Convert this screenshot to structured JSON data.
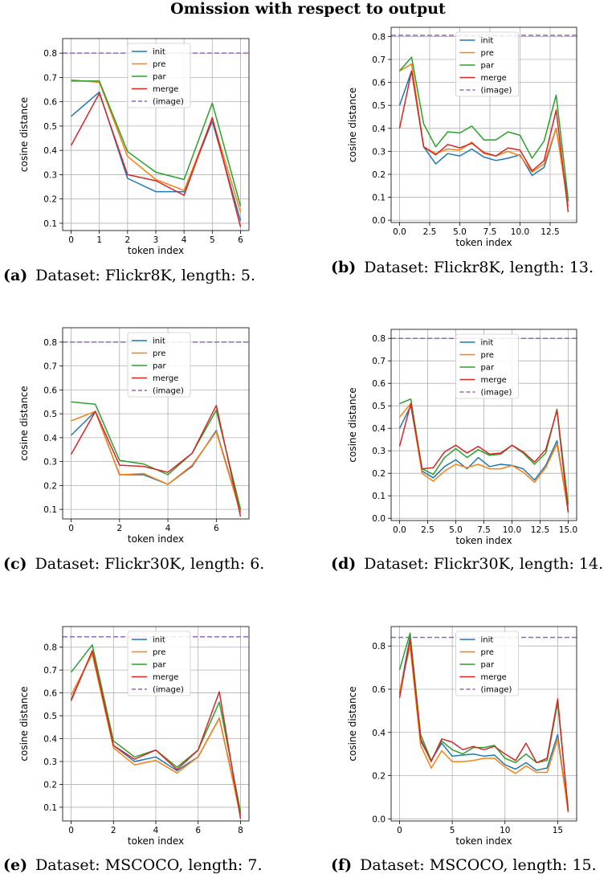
{
  "title": "Omission with respect to output",
  "colors": {
    "init": "#1f77b4",
    "pre": "#ff7f0e",
    "par": "#2ca02c",
    "merge": "#d62728",
    "(image)": "#9467bd"
  },
  "chart_data": [
    {
      "type": "line",
      "label": "(a)",
      "caption": "Dataset: Flickr8K, length: 5.",
      "xlabel": "token index",
      "ylabel": "cosine distance",
      "xlim": [
        -0.3,
        6.3
      ],
      "ylim": [
        0.07,
        0.86
      ],
      "xticks": [
        "0",
        "1",
        "2",
        "3",
        "4",
        "5",
        "6"
      ],
      "xtick_values": [
        0,
        1,
        2,
        3,
        4,
        5,
        6
      ],
      "yticks": [
        "0.1",
        "0.2",
        "0.3",
        "0.4",
        "0.5",
        "0.6",
        "0.7",
        "0.8"
      ],
      "ytick_values": [
        0.1,
        0.2,
        0.3,
        0.4,
        0.5,
        0.6,
        0.7,
        0.8
      ],
      "grid": true,
      "legend": "top-center",
      "x": [
        0,
        1,
        2,
        3,
        4,
        5,
        6
      ],
      "series": [
        {
          "name": "init",
          "values": [
            0.54,
            0.64,
            0.285,
            0.23,
            0.23,
            0.52,
            0.11
          ]
        },
        {
          "name": "pre",
          "values": [
            0.69,
            0.68,
            0.375,
            0.28,
            0.235,
            0.53,
            0.145
          ]
        },
        {
          "name": "par",
          "values": [
            0.685,
            0.685,
            0.395,
            0.31,
            0.28,
            0.595,
            0.17
          ]
        },
        {
          "name": "merge",
          "values": [
            0.42,
            0.635,
            0.3,
            0.275,
            0.215,
            0.535,
            0.085
          ]
        }
      ],
      "hline": {
        "name": "(image)",
        "value": 0.8
      }
    },
    {
      "type": "line",
      "label": "(b)",
      "caption": "Dataset: Flickr8K, length: 13.",
      "xlabel": "token index",
      "ylabel": "cosine distance",
      "xlim": [
        -0.7,
        14.7
      ],
      "ylim": [
        -0.01,
        0.84
      ],
      "xticks": [
        "0.0",
        "2.5",
        "5.0",
        "7.5",
        "10.0",
        "12.5"
      ],
      "xtick_values": [
        0,
        2.5,
        5,
        7.5,
        10,
        12.5
      ],
      "yticks": [
        "0.0",
        "0.1",
        "0.2",
        "0.3",
        "0.4",
        "0.5",
        "0.6",
        "0.7",
        "0.8"
      ],
      "ytick_values": [
        0,
        0.1,
        0.2,
        0.3,
        0.4,
        0.5,
        0.6,
        0.7,
        0.8
      ],
      "grid": true,
      "legend": "top-center",
      "x": [
        0,
        1,
        2,
        3,
        4,
        5,
        6,
        7,
        8,
        9,
        10,
        11,
        12,
        13,
        14
      ],
      "series": [
        {
          "name": "init",
          "values": [
            0.5,
            0.65,
            0.32,
            0.245,
            0.29,
            0.28,
            0.31,
            0.275,
            0.26,
            0.27,
            0.285,
            0.195,
            0.23,
            0.4,
            0.08
          ]
        },
        {
          "name": "pre",
          "values": [
            0.65,
            0.68,
            0.32,
            0.29,
            0.31,
            0.305,
            0.34,
            0.29,
            0.28,
            0.3,
            0.28,
            0.21,
            0.245,
            0.4,
            0.06
          ]
        },
        {
          "name": "par",
          "values": [
            0.65,
            0.71,
            0.42,
            0.32,
            0.385,
            0.38,
            0.41,
            0.35,
            0.35,
            0.385,
            0.37,
            0.27,
            0.345,
            0.545,
            0.09
          ]
        },
        {
          "name": "merge",
          "values": [
            0.4,
            0.65,
            0.32,
            0.285,
            0.33,
            0.315,
            0.335,
            0.295,
            0.28,
            0.315,
            0.305,
            0.215,
            0.26,
            0.48,
            0.035
          ]
        }
      ],
      "hline": {
        "name": "(image)",
        "value": 0.805
      }
    },
    {
      "type": "line",
      "label": "(c)",
      "caption": "Dataset: Flickr30K, length: 6.",
      "xlabel": "token index",
      "ylabel": "cosine distance",
      "xlim": [
        -0.35,
        7.35
      ],
      "ylim": [
        0.06,
        0.86
      ],
      "xticks": [
        "0",
        "2",
        "4",
        "6"
      ],
      "xtick_values": [
        0,
        2,
        4,
        6
      ],
      "yticks": [
        "0.1",
        "0.2",
        "0.3",
        "0.4",
        "0.5",
        "0.6",
        "0.7",
        "0.8"
      ],
      "ytick_values": [
        0.1,
        0.2,
        0.3,
        0.4,
        0.5,
        0.6,
        0.7,
        0.8
      ],
      "grid": true,
      "legend": "top-center",
      "x": [
        0,
        1,
        2,
        3,
        4,
        5,
        6,
        7
      ],
      "series": [
        {
          "name": "init",
          "values": [
            0.41,
            0.51,
            0.245,
            0.245,
            0.205,
            0.28,
            0.43,
            0.09
          ]
        },
        {
          "name": "pre",
          "values": [
            0.47,
            0.51,
            0.245,
            0.25,
            0.205,
            0.285,
            0.425,
            0.085
          ]
        },
        {
          "name": "par",
          "values": [
            0.55,
            0.54,
            0.305,
            0.29,
            0.245,
            0.335,
            0.515,
            0.1
          ]
        },
        {
          "name": "merge",
          "values": [
            0.33,
            0.51,
            0.285,
            0.28,
            0.255,
            0.335,
            0.535,
            0.07
          ]
        }
      ],
      "hline": {
        "name": "(image)",
        "value": 0.8
      }
    },
    {
      "type": "line",
      "label": "(d)",
      "caption": "Dataset: Flickr30K, length: 14.",
      "xlabel": "token index",
      "ylabel": "cosine distance",
      "xlim": [
        -0.75,
        15.75
      ],
      "ylim": [
        -0.01,
        0.84
      ],
      "xticks": [
        "0.0",
        "2.5",
        "5.0",
        "7.5",
        "10.0",
        "12.5",
        "15.0"
      ],
      "xtick_values": [
        0,
        2.5,
        5,
        7.5,
        10,
        12.5,
        15
      ],
      "yticks": [
        "0.0",
        "0.1",
        "0.2",
        "0.3",
        "0.4",
        "0.5",
        "0.6",
        "0.7",
        "0.8"
      ],
      "ytick_values": [
        0,
        0.1,
        0.2,
        0.3,
        0.4,
        0.5,
        0.6,
        0.7,
        0.8
      ],
      "grid": true,
      "legend": "top-center",
      "x": [
        0,
        1,
        2,
        3,
        4,
        5,
        6,
        7,
        8,
        9,
        10,
        11,
        12,
        13,
        14,
        15
      ],
      "series": [
        {
          "name": "init",
          "values": [
            0.4,
            0.5,
            0.21,
            0.18,
            0.23,
            0.26,
            0.22,
            0.27,
            0.23,
            0.24,
            0.235,
            0.22,
            0.17,
            0.235,
            0.345,
            0.03
          ]
        },
        {
          "name": "pre",
          "values": [
            0.45,
            0.51,
            0.2,
            0.165,
            0.21,
            0.24,
            0.225,
            0.24,
            0.22,
            0.22,
            0.235,
            0.205,
            0.16,
            0.225,
            0.33,
            0.03
          ]
        },
        {
          "name": "par",
          "values": [
            0.51,
            0.53,
            0.22,
            0.195,
            0.27,
            0.31,
            0.27,
            0.305,
            0.28,
            0.285,
            0.325,
            0.29,
            0.24,
            0.29,
            0.485,
            0.06
          ]
        },
        {
          "name": "merge",
          "values": [
            0.32,
            0.51,
            0.22,
            0.225,
            0.295,
            0.325,
            0.29,
            0.32,
            0.285,
            0.29,
            0.325,
            0.295,
            0.25,
            0.305,
            0.48,
            0.025
          ]
        }
      ],
      "hline": {
        "name": "(image)",
        "value": 0.8
      }
    },
    {
      "type": "line",
      "label": "(e)",
      "caption": "Dataset: MSCOCO, length: 7.",
      "xlabel": "token index",
      "ylabel": "cosine distance",
      "xlim": [
        -0.4,
        8.4
      ],
      "ylim": [
        0.04,
        0.89
      ],
      "xticks": [
        "0",
        "2",
        "4",
        "6",
        "8"
      ],
      "xtick_values": [
        0,
        2,
        4,
        6,
        8
      ],
      "yticks": [
        "0.1",
        "0.2",
        "0.3",
        "0.4",
        "0.5",
        "0.6",
        "0.7",
        "0.8"
      ],
      "ytick_values": [
        0.1,
        0.2,
        0.3,
        0.4,
        0.5,
        0.6,
        0.7,
        0.8
      ],
      "grid": true,
      "legend": "top-center",
      "x": [
        0,
        1,
        2,
        3,
        4,
        5,
        6,
        7,
        8
      ],
      "series": [
        {
          "name": "init",
          "values": [
            0.57,
            0.78,
            0.37,
            0.3,
            0.32,
            0.26,
            0.32,
            0.49,
            0.07
          ]
        },
        {
          "name": "pre",
          "values": [
            0.59,
            0.77,
            0.36,
            0.285,
            0.305,
            0.25,
            0.32,
            0.49,
            0.06
          ]
        },
        {
          "name": "par",
          "values": [
            0.69,
            0.81,
            0.39,
            0.32,
            0.35,
            0.275,
            0.35,
            0.56,
            0.08
          ]
        },
        {
          "name": "merge",
          "values": [
            0.565,
            0.785,
            0.37,
            0.31,
            0.35,
            0.265,
            0.35,
            0.605,
            0.05
          ]
        }
      ],
      "hline": {
        "name": "(image)",
        "value": 0.845
      }
    },
    {
      "type": "line",
      "label": "(f)",
      "caption": "Dataset: MSCOCO, length: 15.",
      "xlabel": "token index",
      "ylabel": "cosine distance",
      "xlim": [
        -0.8,
        16.8
      ],
      "ylim": [
        -0.01,
        0.89
      ],
      "xticks": [
        "0",
        "5",
        "10",
        "15"
      ],
      "xtick_values": [
        0,
        5,
        10,
        15
      ],
      "yticks": [
        "0.0",
        "0.2",
        "0.4",
        "0.6",
        "0.8"
      ],
      "ytick_values": [
        0,
        0.2,
        0.4,
        0.6,
        0.8
      ],
      "grid": true,
      "legend": "top-center",
      "x": [
        0,
        1,
        2,
        3,
        4,
        5,
        6,
        7,
        8,
        9,
        10,
        11,
        12,
        13,
        14,
        15,
        16
      ],
      "series": [
        {
          "name": "init",
          "values": [
            0.58,
            0.84,
            0.36,
            0.27,
            0.35,
            0.29,
            0.295,
            0.3,
            0.29,
            0.295,
            0.25,
            0.23,
            0.26,
            0.225,
            0.235,
            0.39,
            0.03
          ]
        },
        {
          "name": "pre",
          "values": [
            0.59,
            0.8,
            0.34,
            0.235,
            0.315,
            0.265,
            0.265,
            0.27,
            0.28,
            0.28,
            0.24,
            0.21,
            0.245,
            0.215,
            0.215,
            0.37,
            0.03
          ]
        },
        {
          "name": "par",
          "values": [
            0.69,
            0.86,
            0.39,
            0.27,
            0.36,
            0.32,
            0.3,
            0.33,
            0.33,
            0.34,
            0.28,
            0.26,
            0.3,
            0.26,
            0.27,
            0.54,
            0.04
          ]
        },
        {
          "name": "merge",
          "values": [
            0.56,
            0.83,
            0.37,
            0.265,
            0.37,
            0.355,
            0.32,
            0.335,
            0.32,
            0.335,
            0.3,
            0.27,
            0.35,
            0.26,
            0.28,
            0.555,
            0.035
          ]
        }
      ],
      "hline": {
        "name": "(image)",
        "value": 0.84
      }
    }
  ]
}
